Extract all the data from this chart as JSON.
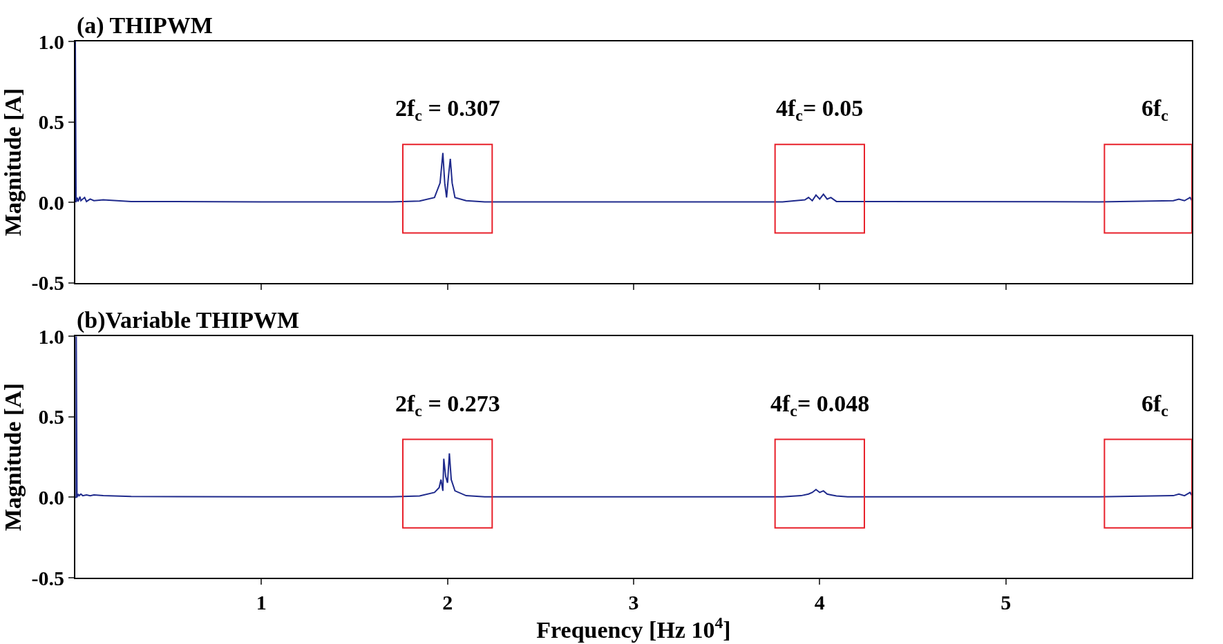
{
  "chart_data": [
    {
      "type": "line",
      "title": "(a) THIPWM",
      "ylabel": "Magnitude [A]",
      "xlim": [
        0,
        6
      ],
      "xticks": [
        1,
        2,
        3,
        4,
        5
      ],
      "ylim": [
        -0.5,
        1.0
      ],
      "yticks": [
        {
          "value": -0.5,
          "label": "-0.5"
        },
        {
          "value": 0,
          "label": "0.0"
        },
        {
          "value": 0.5,
          "label": "0.5"
        },
        {
          "value": 1,
          "label": "1.0"
        }
      ],
      "tick_labels": "y",
      "series": [
        {
          "color": "#1f2a8c",
          "x": [
            0,
            0,
            0.004,
            0.01,
            0.015,
            0.025,
            0.03,
            0.05,
            0.06,
            0.08,
            0.1,
            0.15,
            0.3,
            1,
            1.7,
            1.85,
            1.93,
            1.96,
            1.975,
            1.985,
            1.995,
            2.005,
            2.015,
            2.025,
            2.04,
            2.1,
            2.2,
            3.8,
            3.92,
            3.94,
            3.96,
            3.98,
            4.0,
            4.02,
            4.04,
            4.06,
            4.09,
            5.5,
            5.9,
            5.93,
            5.96,
            5.99,
            6.0
          ],
          "values": [
            0,
            1.0,
            0,
            0.03,
            0.005,
            0.035,
            0.01,
            0.03,
            0.005,
            0.02,
            0.01,
            0.015,
            0.005,
            0.003,
            0.003,
            0.008,
            0.03,
            0.12,
            0.307,
            0.12,
            0.03,
            0.16,
            0.27,
            0.12,
            0.03,
            0.01,
            0.003,
            0.003,
            0.015,
            0.03,
            0.01,
            0.045,
            0.02,
            0.05,
            0.02,
            0.03,
            0.005,
            0.003,
            0.01,
            0.02,
            0.01,
            0.03,
            0.01
          ]
        }
      ],
      "annotations": [
        "2f$_{c}$ = 0.307",
        "4f$_{c}$= 0.05",
        "6f$_{c}$"
      ]
    },
    {
      "type": "line",
      "title": "(b)Variable THIPWM",
      "ylabel": "Magnitude [A]",
      "xlabel": "Frequency [Hz 10$^{4}$]",
      "xlim": [
        0,
        6
      ],
      "xticks": [
        1,
        2,
        3,
        4,
        5
      ],
      "ylim": [
        -0.5,
        1.0
      ],
      "yticks": [
        {
          "value": -0.5,
          "label": "-0.5"
        },
        {
          "value": 0,
          "label": "0.0"
        },
        {
          "value": 0.5,
          "label": "0.5"
        },
        {
          "value": 1,
          "label": "1.0"
        }
      ],
      "series": [
        {
          "color": "#1f2a8c",
          "x": [
            0,
            0.005,
            0.005,
            0.009,
            0.015,
            0.02,
            0.03,
            0.04,
            0.06,
            0.08,
            0.1,
            0.15,
            0.3,
            1,
            1.7,
            1.85,
            1.93,
            1.955,
            1.965,
            1.975,
            1.98,
            1.99,
            2.0,
            2.01,
            2.02,
            2.04,
            2.1,
            2.2,
            3.8,
            3.9,
            3.94,
            3.96,
            3.98,
            4.0,
            4.02,
            4.04,
            4.06,
            4.09,
            4.15,
            5.5,
            5.9,
            5.93,
            5.96,
            5.99,
            6.0
          ],
          "values": [
            0,
            0,
            1.0,
            0,
            0.02,
            0.01,
            0.02,
            0.01,
            0.015,
            0.01,
            0.015,
            0.01,
            0.005,
            0.003,
            0.003,
            0.008,
            0.03,
            0.06,
            0.11,
            0.04,
            0.24,
            0.13,
            0.09,
            0.273,
            0.11,
            0.04,
            0.01,
            0.003,
            0.003,
            0.01,
            0.02,
            0.03,
            0.048,
            0.03,
            0.04,
            0.02,
            0.015,
            0.008,
            0.003,
            0.003,
            0.01,
            0.02,
            0.01,
            0.03,
            0.01
          ]
        }
      ],
      "annotations": [
        "2f$_{c}$ = 0.273",
        "4f$_{c}$= 0.048",
        "6f$_{c}$"
      ]
    }
  ]
}
